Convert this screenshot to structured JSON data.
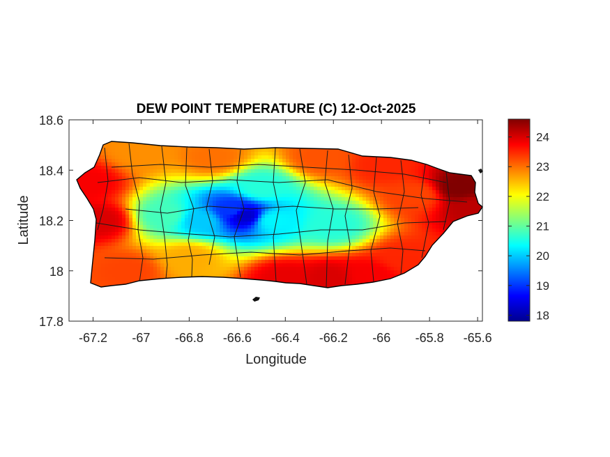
{
  "chart_data": {
    "type": "heatmap",
    "title": "DEW POINT TEMPERATURE (C) 12-Oct-2025",
    "xlabel": "Longitude",
    "ylabel": "Latitude",
    "xlim": [
      -67.3,
      -65.58
    ],
    "ylim": [
      17.8,
      18.6
    ],
    "xticks": [
      -67.2,
      -67,
      -66.8,
      -66.6,
      -66.4,
      -66.2,
      -66,
      -65.8,
      -65.6
    ],
    "xtick_labels": [
      "-67.2",
      "-67",
      "-66.8",
      "-66.6",
      "-66.4",
      "-66.2",
      "-66",
      "-65.8",
      "-65.6"
    ],
    "yticks": [
      17.8,
      18,
      18.2,
      18.4,
      18.6
    ],
    "ytick_labels": [
      "17.8",
      "18",
      "18.2",
      "18.4",
      "18.6"
    ],
    "colorbar": {
      "colormap": "jet",
      "range": [
        17.8,
        24.6
      ],
      "ticks": [
        18,
        19,
        20,
        21,
        22,
        23,
        24
      ],
      "tick_labels": [
        "18",
        "19",
        "20",
        "21",
        "22",
        "23",
        "24"
      ]
    },
    "grid": false,
    "region": "Puerto Rico",
    "field_centers": [
      {
        "lon": -66.57,
        "lat": 18.22,
        "value": 18.3
      },
      {
        "lon": -66.62,
        "lat": 18.24,
        "value": 19.0
      },
      {
        "lon": -66.75,
        "lat": 18.2,
        "value": 20.0
      },
      {
        "lon": -66.45,
        "lat": 18.2,
        "value": 20.3
      },
      {
        "lon": -66.2,
        "lat": 18.18,
        "value": 20.6
      },
      {
        "lon": -66.9,
        "lat": 18.22,
        "value": 20.8
      },
      {
        "lon": -66.5,
        "lat": 18.33,
        "value": 20.6
      },
      {
        "lon": -65.68,
        "lat": 18.33,
        "value": 24.6
      },
      {
        "lon": -65.62,
        "lat": 18.25,
        "value": 24.2
      },
      {
        "lon": -67.17,
        "lat": 18.2,
        "value": 24.0
      },
      {
        "lon": -67.22,
        "lat": 18.35,
        "value": 23.8
      },
      {
        "lon": -66.22,
        "lat": 17.97,
        "value": 24.0
      },
      {
        "lon": -66.4,
        "lat": 17.97,
        "value": 23.9
      },
      {
        "lon": -66.05,
        "lat": 17.98,
        "value": 23.8
      },
      {
        "lon": -65.9,
        "lat": 18.05,
        "value": 23.5
      },
      {
        "lon": -66.0,
        "lat": 18.42,
        "value": 23.5
      },
      {
        "lon": -66.25,
        "lat": 18.45,
        "value": 23.2
      },
      {
        "lon": -66.7,
        "lat": 18.45,
        "value": 23.0
      },
      {
        "lon": -67.0,
        "lat": 18.47,
        "value": 22.8
      },
      {
        "lon": -66.8,
        "lat": 18.05,
        "value": 22.6
      },
      {
        "lon": -67.05,
        "lat": 18.0,
        "value": 23.3
      },
      {
        "lon": -65.85,
        "lat": 18.3,
        "value": 23.3
      }
    ]
  }
}
